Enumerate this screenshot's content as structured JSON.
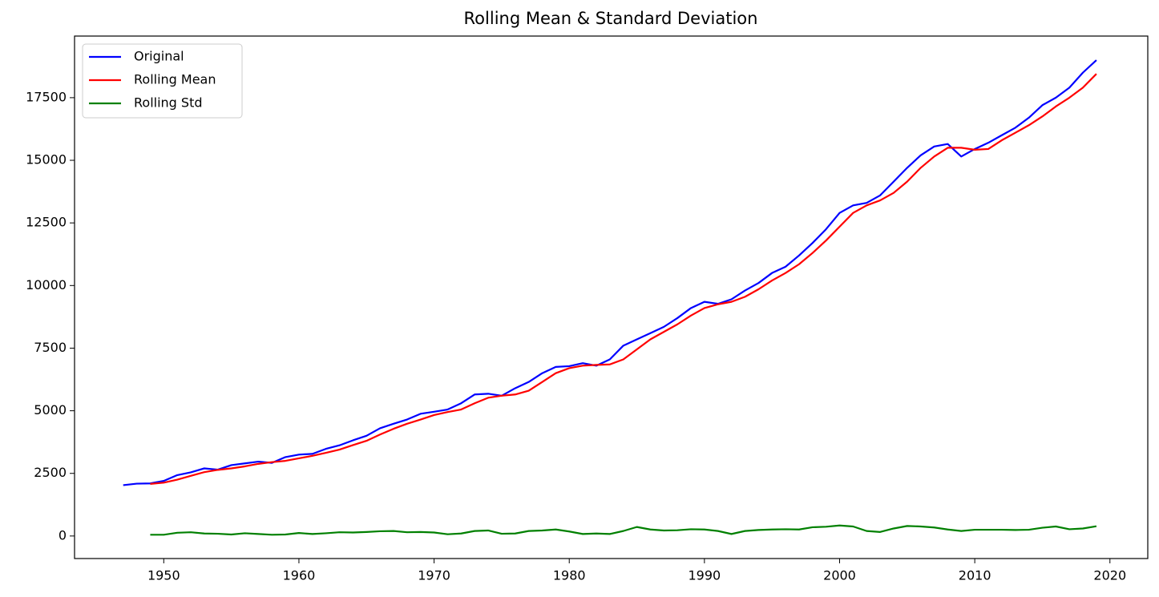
{
  "chart_data": {
    "type": "line",
    "title": "Rolling Mean & Standard Deviation",
    "x": [
      1947,
      1948,
      1949,
      1950,
      1951,
      1952,
      1953,
      1954,
      1955,
      1956,
      1957,
      1958,
      1959,
      1960,
      1961,
      1962,
      1963,
      1964,
      1965,
      1966,
      1967,
      1968,
      1969,
      1970,
      1971,
      1972,
      1973,
      1974,
      1975,
      1976,
      1977,
      1978,
      1979,
      1980,
      1981,
      1982,
      1983,
      1984,
      1985,
      1986,
      1987,
      1988,
      1989,
      1990,
      1991,
      1992,
      1993,
      1994,
      1995,
      1996,
      1997,
      1998,
      1999,
      2000,
      2001,
      2002,
      2003,
      2004,
      2005,
      2006,
      2007,
      2008,
      2009,
      2010,
      2011,
      2012,
      2013,
      2014,
      2015,
      2016,
      2017,
      2018,
      2019
    ],
    "series": [
      {
        "name": "Original",
        "color": "#0000ff",
        "values": [
          2030,
          2090,
          2100,
          2200,
          2430,
          2540,
          2700,
          2650,
          2830,
          2900,
          2970,
          2920,
          3150,
          3250,
          3280,
          3480,
          3620,
          3820,
          4000,
          4300,
          4480,
          4650,
          4880,
          4960,
          5050,
          5300,
          5650,
          5680,
          5600,
          5900,
          6150,
          6500,
          6750,
          6780,
          6900,
          6800,
          7050,
          7600,
          7850,
          8100,
          8350,
          8700,
          9100,
          9350,
          9270,
          9450,
          9800,
          10100,
          10500,
          10750,
          11200,
          11700,
          12250,
          12900,
          13200,
          13300,
          13600,
          14150,
          14700,
          15200,
          15550,
          15650,
          15150,
          15450,
          15700,
          16000,
          16300,
          16700,
          17200,
          17500,
          17900,
          18500,
          19000
        ]
      },
      {
        "name": "Rolling Mean",
        "color": "#ff0000",
        "values": [
          null,
          null,
          2080,
          2130,
          2250,
          2400,
          2550,
          2640,
          2700,
          2780,
          2880,
          2950,
          3000,
          3100,
          3200,
          3320,
          3450,
          3630,
          3800,
          4050,
          4280,
          4480,
          4650,
          4830,
          4950,
          5050,
          5300,
          5520,
          5600,
          5650,
          5800,
          6150,
          6500,
          6700,
          6800,
          6830,
          6850,
          7050,
          7450,
          7850,
          8150,
          8450,
          8800,
          9100,
          9250,
          9350,
          9550,
          9850,
          10200,
          10500,
          10850,
          11300,
          11800,
          12350,
          12900,
          13200,
          13400,
          13700,
          14150,
          14700,
          15150,
          15500,
          15500,
          15420,
          15450,
          15800,
          16100,
          16400,
          16750,
          17150,
          17500,
          17900,
          18450
        ]
      },
      {
        "name": "Rolling Std",
        "color": "#008000",
        "values": [
          null,
          null,
          50,
          50,
          130,
          150,
          100,
          90,
          60,
          110,
          80,
          50,
          60,
          120,
          80,
          110,
          150,
          140,
          160,
          190,
          200,
          150,
          160,
          140,
          70,
          100,
          200,
          220,
          90,
          100,
          200,
          220,
          260,
          180,
          80,
          100,
          80,
          200,
          360,
          260,
          220,
          230,
          270,
          260,
          200,
          80,
          200,
          240,
          260,
          270,
          260,
          350,
          370,
          420,
          380,
          200,
          160,
          300,
          400,
          380,
          340,
          260,
          200,
          250,
          250,
          250,
          240,
          250,
          330,
          380,
          270,
          300,
          390
        ]
      }
    ],
    "xlim": [
      1943.4,
      2022.8
    ],
    "ylim": [
      -900,
      19960
    ],
    "xticks": [
      1950,
      1960,
      1970,
      1980,
      1990,
      2000,
      2010,
      2020
    ],
    "yticks": [
      0,
      2500,
      5000,
      7500,
      10000,
      12500,
      15000,
      17500
    ],
    "grid": false,
    "legend": "upper left"
  }
}
